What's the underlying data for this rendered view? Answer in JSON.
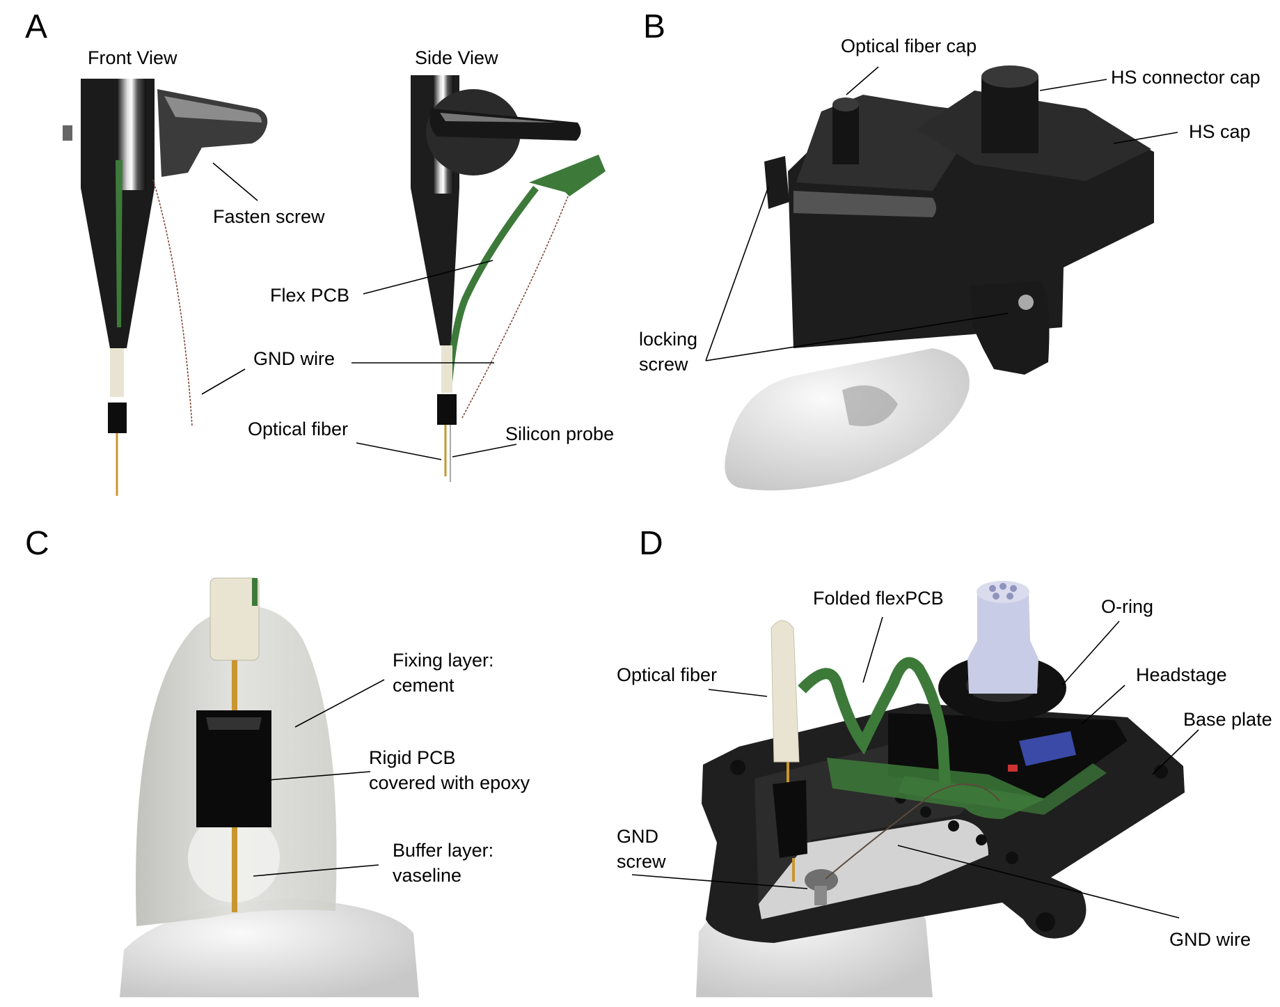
{
  "panels": {
    "A": {
      "letter": "A",
      "front_view": "Front View",
      "side_view": "Side View",
      "labels": {
        "fasten_screw": "Fasten screw",
        "flex_pcb": "Flex PCB",
        "gnd_wire": "GND wire",
        "optical_fiber": "Optical fiber",
        "silicon_probe": "Silicon probe"
      }
    },
    "B": {
      "letter": "B",
      "labels": {
        "optical_fiber_cap": "Optical fiber cap",
        "hs_connector_cap": "HS connector cap",
        "hs_cap": "HS cap",
        "locking_1": "locking",
        "locking_2": "screw"
      }
    },
    "C": {
      "letter": "C",
      "labels": {
        "fixing_1": "Fixing layer:",
        "fixing_2": "cement",
        "rigid_1": "Rigid PCB",
        "rigid_2": "covered with epoxy",
        "buffer_1": "Buffer layer:",
        "buffer_2": "vaseline"
      }
    },
    "D": {
      "letter": "D",
      "labels": {
        "folded_flexpcb": "Folded flexPCB",
        "o_ring": "O-ring",
        "optical_fiber": "Optical fiber",
        "headstage": "Headstage",
        "base_plate": "Base plate",
        "gnd_1": "GND",
        "gnd_2": "screw",
        "gnd_wire": "GND wire"
      }
    }
  },
  "colors": {
    "black_part": "#1c1c1c",
    "flex_green": "#3d7a3a",
    "fiber_gold": "#c9962e",
    "ferrule": "#e9e4d2",
    "skull": "#e6e6e6",
    "cement": "#d5d5d0",
    "connector_blue": "#3a4aa6",
    "connector_lavender": "#c8cce6"
  }
}
